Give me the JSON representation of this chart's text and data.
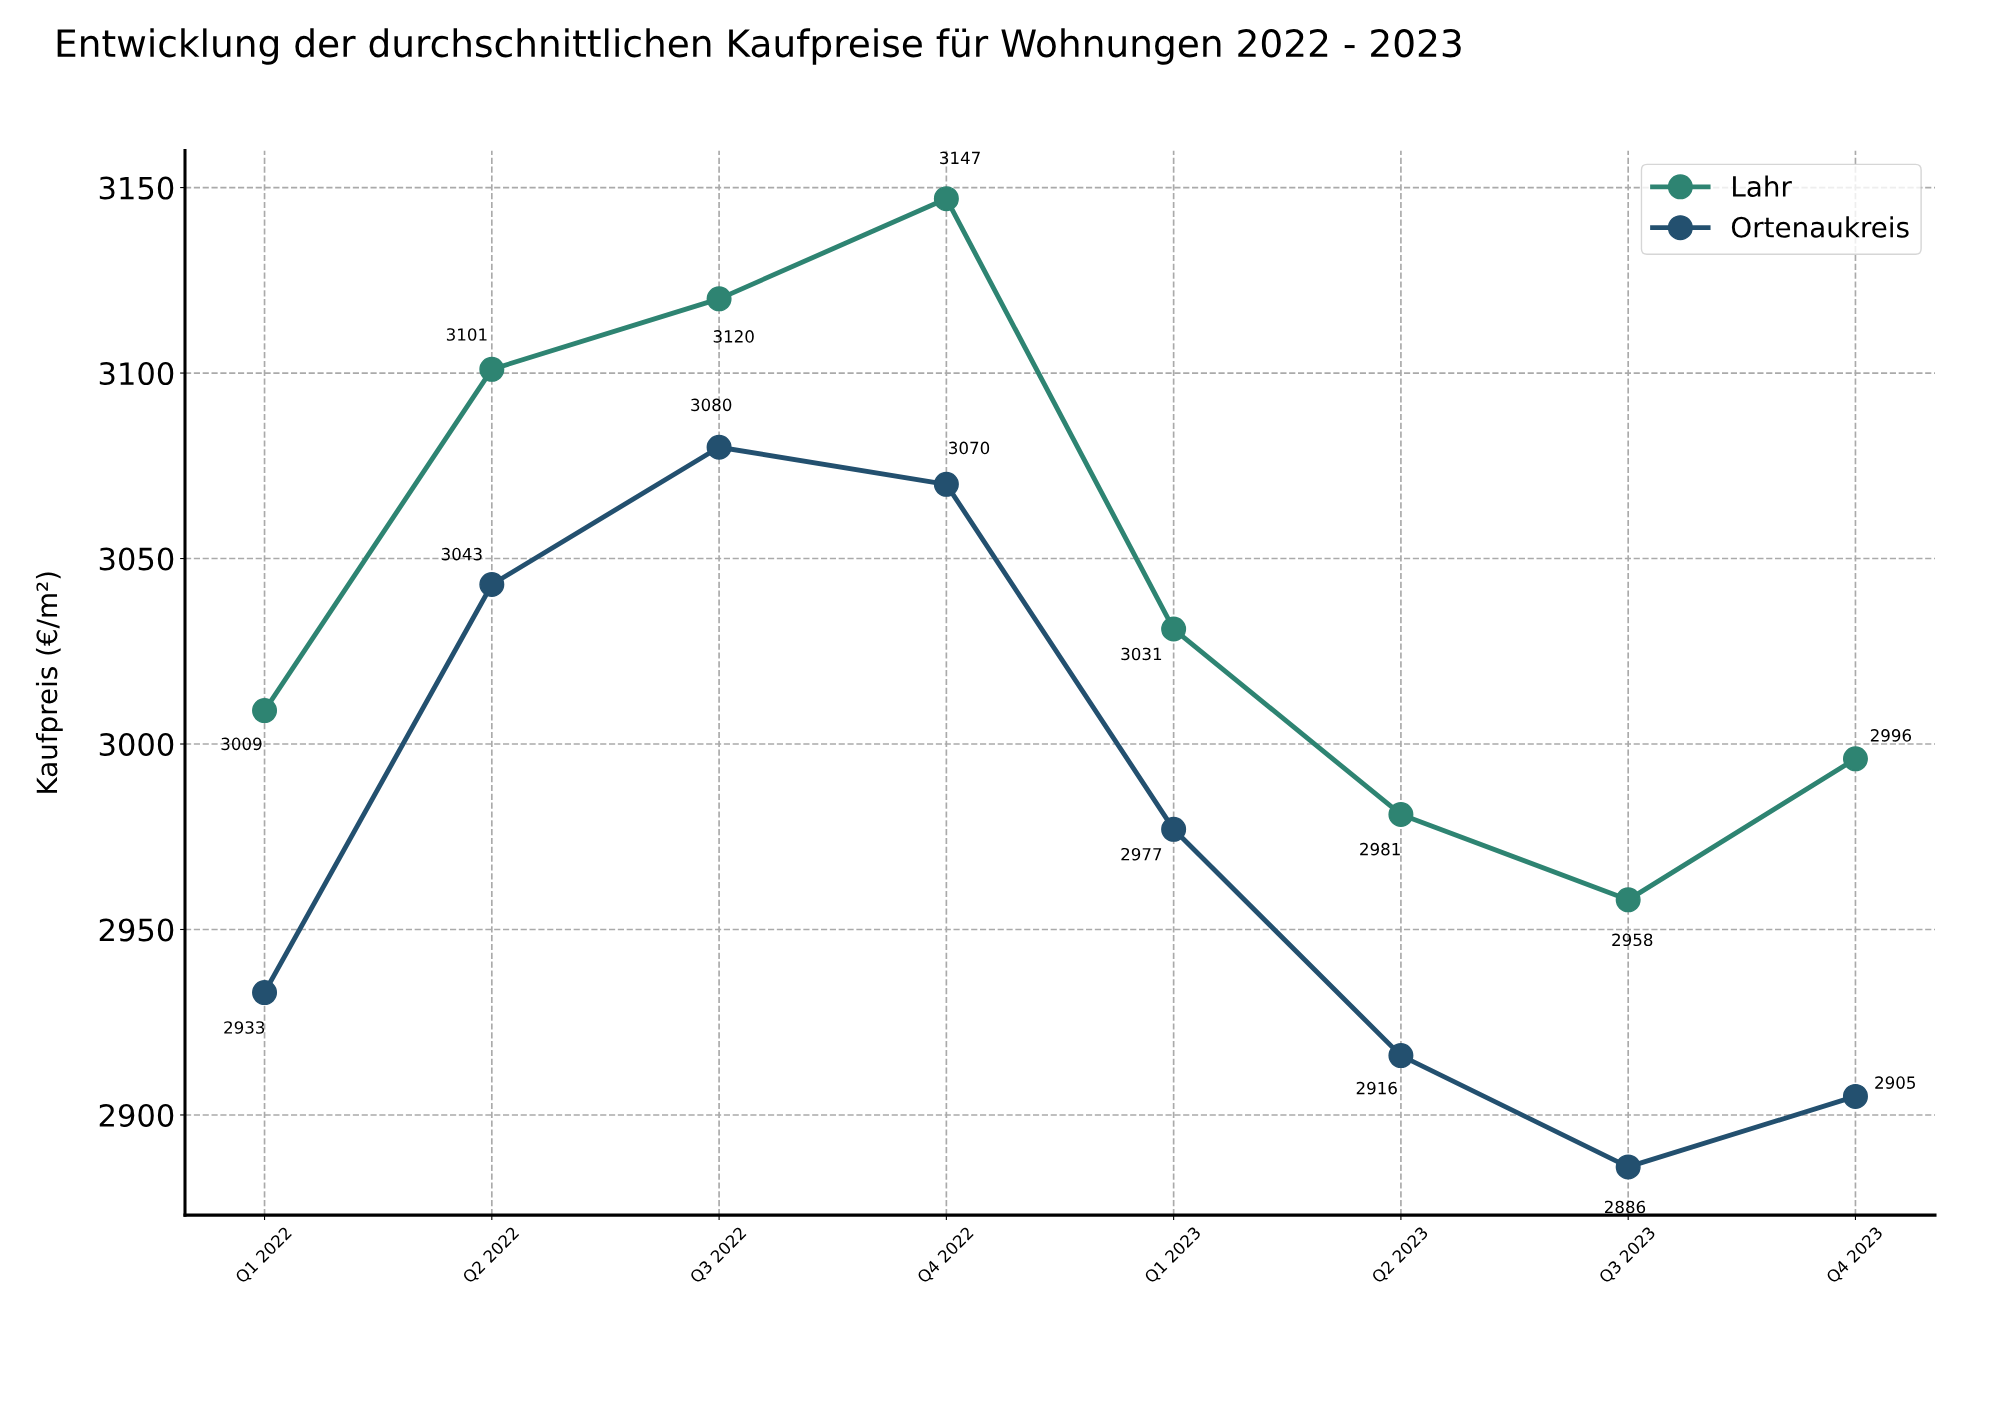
{
  "chart_data": {
    "type": "line",
    "title": "Entwicklung der durchschnittlichen Kaufpreise für Wohnungen 2022 - 2023",
    "ylabel": "Kaufpreis (€/m²)",
    "categories": [
      "Q1 2022",
      "Q2 2022",
      "Q3 2022",
      "Q4 2022",
      "Q1 2023",
      "Q2 2023",
      "Q3 2023",
      "Q4 2023"
    ],
    "series": [
      {
        "name": "Lahr",
        "color": "#2e8472",
        "values": [
          3009,
          3101,
          3120,
          3147,
          3031,
          2981,
          2958,
          2996
        ]
      },
      {
        "name": "Ortenaukreis",
        "color": "#23506f",
        "values": [
          2933,
          3043,
          3080,
          3070,
          2977,
          2916,
          2886,
          2905
        ]
      }
    ],
    "ylim": [
      2873,
      3160
    ],
    "yticks": [
      2900,
      2950,
      3000,
      3050,
      3100,
      3150
    ],
    "grid": true,
    "legend": "top right",
    "marker": "circle",
    "line_style": "solid",
    "data_labels": true
  }
}
